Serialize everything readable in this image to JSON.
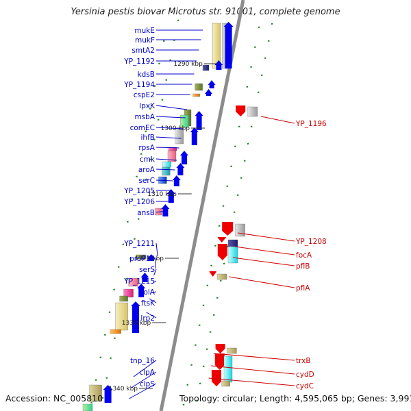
{
  "header": {
    "title": "Yersinia pestis biovar Microtus str. 91001, complete genome"
  },
  "footer": {
    "accession": "Accession: NC_005810",
    "topology": "Topology: circular; Length: 4,595,065 bp; Genes: 3,991"
  },
  "ruler": [
    "1290 kbp",
    "1300 kbp",
    "1310 kbp",
    "1320 kbp",
    "1330 kbp",
    "1340 kbp"
  ],
  "genes_left": [
    "mukE",
    "mukF",
    "smtA2",
    "YP_1192",
    "kdsB",
    "YP_1194",
    "cspE2",
    "lpxK",
    "msbA",
    "comEC",
    "ihfB",
    "rpsA",
    "cmk",
    "aroA",
    "serC",
    "YP_1205",
    "YP_1206",
    "ansB",
    "YP_1211",
    "proP12",
    "serS",
    "YP_1215",
    "lolA",
    "ftsK",
    "lrp2",
    "tnp_16",
    "clpA",
    "clpS"
  ],
  "genes_right": [
    "YP_1196",
    "YP_1208",
    "focA",
    "pflB",
    "pflA",
    "trxB",
    "cydD",
    "cydC"
  ],
  "colors": {
    "forward_label": "#0000cc",
    "reverse_label": "#cc0000",
    "forward_arrow": "#0000ee",
    "reverse_arrow": "#ee0000",
    "backbone": "#8c8c8c",
    "tick": "#228822"
  }
}
